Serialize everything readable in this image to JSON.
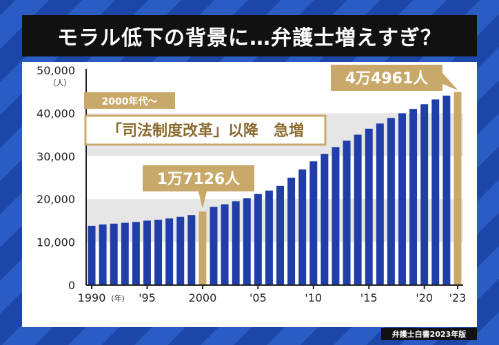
{
  "title": "モラル低下の背景に…弁護士増えすぎ？",
  "source": "弁護士白書2023年版",
  "colors": {
    "bar": "#1f3ea7",
    "highlight": "#c9a96a",
    "band": "#e6e6e6"
  },
  "chart_data": {
    "type": "bar",
    "y_unit_label": "（人）",
    "x_unit_label": "(年)",
    "ylim": [
      0,
      50000
    ],
    "yticks": [
      "0",
      "10,000",
      "20,000",
      "30,000",
      "40,000",
      "50,000"
    ],
    "xticks": [
      {
        "year": 1990,
        "label": "1990"
      },
      {
        "year": 1995,
        "label": "'95"
      },
      {
        "year": 2000,
        "label": "2000"
      },
      {
        "year": 2005,
        "label": "'05"
      },
      {
        "year": 2010,
        "label": "'10"
      },
      {
        "year": 2015,
        "label": "'15"
      },
      {
        "year": 2020,
        "label": "'20"
      },
      {
        "year": 2023,
        "label": "'23"
      }
    ],
    "categories": [
      1990,
      1991,
      1992,
      1993,
      1994,
      1995,
      1996,
      1997,
      1998,
      1999,
      2000,
      2001,
      2002,
      2003,
      2004,
      2005,
      2006,
      2007,
      2008,
      2009,
      2010,
      2011,
      2012,
      2013,
      2014,
      2015,
      2016,
      2017,
      2018,
      2019,
      2020,
      2021,
      2022,
      2023
    ],
    "values": [
      13800,
      14100,
      14300,
      14500,
      14700,
      15000,
      15200,
      15500,
      15900,
      16300,
      17126,
      18200,
      18800,
      19500,
      20200,
      21200,
      22000,
      23100,
      25000,
      26900,
      28800,
      30500,
      32100,
      33600,
      35000,
      36400,
      37600,
      38900,
      40000,
      41000,
      42100,
      43200,
      44100,
      44961
    ],
    "highlight": [
      2000,
      2023
    ],
    "annotations": {
      "y2000": "1万7126人",
      "y2023": "4万4961人",
      "era_small": "2000年代～",
      "era_big": "「司法制度改革」以降　急増"
    }
  }
}
